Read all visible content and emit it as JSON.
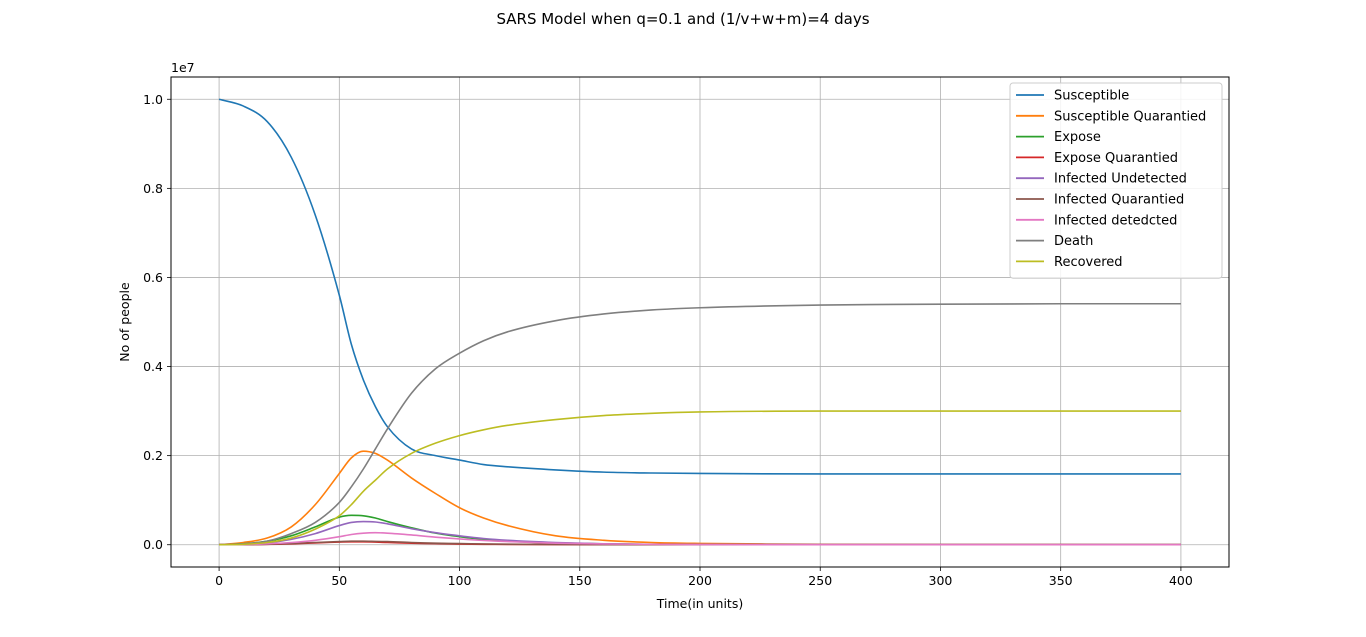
{
  "chart_data": {
    "type": "line",
    "title": "SARS Model when q=0.1 and (1/v+w+m)=4 days",
    "xlabel": "Time(in units)",
    "ylabel": "No of people",
    "y_offset_label": "1e7",
    "xlim": [
      -20,
      420
    ],
    "ylim": [
      -0.05,
      1.05
    ],
    "xticks": [
      0,
      50,
      100,
      150,
      200,
      250,
      300,
      350,
      400
    ],
    "xtick_labels": [
      "0",
      "50",
      "100",
      "150",
      "200",
      "250",
      "300",
      "350",
      "400"
    ],
    "yticks": [
      0.0,
      0.2,
      0.4,
      0.6,
      0.8,
      1.0
    ],
    "ytick_labels": [
      "0.0",
      "0.2",
      "0.4",
      "0.6",
      "0.8",
      "1.0"
    ],
    "grid": true,
    "legend_position": "top-right",
    "x": [
      0,
      10,
      20,
      30,
      40,
      50,
      55,
      60,
      65,
      70,
      80,
      90,
      100,
      110,
      120,
      140,
      160,
      180,
      200,
      250,
      300,
      350,
      400
    ],
    "series": [
      {
        "name": "Susceptible",
        "color": "#1f77b4",
        "values": [
          1.0,
          0.985,
          0.95,
          0.87,
          0.74,
          0.56,
          0.45,
          0.37,
          0.31,
          0.265,
          0.215,
          0.2,
          0.19,
          0.18,
          0.175,
          0.168,
          0.163,
          0.161,
          0.16,
          0.159,
          0.159,
          0.159,
          0.159
        ]
      },
      {
        "name": "Susceptible Quarantied",
        "color": "#ff7f0e",
        "values": [
          0.0,
          0.005,
          0.015,
          0.04,
          0.09,
          0.16,
          0.195,
          0.21,
          0.205,
          0.19,
          0.15,
          0.115,
          0.083,
          0.06,
          0.043,
          0.02,
          0.01,
          0.005,
          0.003,
          0.001,
          0.0005,
          0.0003,
          0.0002
        ]
      },
      {
        "name": "Expose",
        "color": "#2ca02c",
        "values": [
          0.0,
          0.002,
          0.008,
          0.02,
          0.04,
          0.062,
          0.066,
          0.065,
          0.06,
          0.052,
          0.038,
          0.026,
          0.018,
          0.012,
          0.008,
          0.004,
          0.002,
          0.001,
          0.0005,
          0.0002,
          0.0001,
          0.0001,
          0.0001
        ]
      },
      {
        "name": "Expose Quarantied",
        "color": "#d62728",
        "values": [
          0.0,
          0.0002,
          0.0008,
          0.002,
          0.004,
          0.006,
          0.0065,
          0.0065,
          0.006,
          0.005,
          0.0035,
          0.0025,
          0.0015,
          0.001,
          0.0007,
          0.0003,
          0.0001,
          0.0001,
          0.0,
          0.0,
          0.0,
          0.0,
          0.0
        ]
      },
      {
        "name": "Infected Undetected",
        "color": "#9467bd",
        "values": [
          0.0,
          0.001,
          0.004,
          0.012,
          0.025,
          0.043,
          0.05,
          0.052,
          0.051,
          0.047,
          0.036,
          0.027,
          0.02,
          0.014,
          0.01,
          0.005,
          0.002,
          0.001,
          0.0006,
          0.0002,
          0.0001,
          0.0001,
          0.0001
        ]
      },
      {
        "name": "Infected Quarantied",
        "color": "#8c564b",
        "values": [
          0.0,
          0.0003,
          0.001,
          0.003,
          0.005,
          0.007,
          0.008,
          0.008,
          0.0075,
          0.007,
          0.005,
          0.0035,
          0.0025,
          0.0017,
          0.0012,
          0.0005,
          0.0002,
          0.0001,
          0.0,
          0.0,
          0.0,
          0.0,
          0.0
        ]
      },
      {
        "name": "Infected detedcted",
        "color": "#e377c2",
        "values": [
          0.0,
          0.0005,
          0.002,
          0.005,
          0.01,
          0.018,
          0.023,
          0.026,
          0.027,
          0.026,
          0.022,
          0.017,
          0.013,
          0.0095,
          0.007,
          0.0035,
          0.0017,
          0.0008,
          0.0004,
          0.0001,
          0.0,
          0.0,
          0.0
        ]
      },
      {
        "name": "Death",
        "color": "#7f7f7f",
        "values": [
          0.0,
          0.002,
          0.008,
          0.025,
          0.05,
          0.095,
          0.13,
          0.17,
          0.215,
          0.26,
          0.34,
          0.395,
          0.43,
          0.458,
          0.478,
          0.503,
          0.518,
          0.527,
          0.532,
          0.538,
          0.54,
          0.541,
          0.541
        ]
      },
      {
        "name": "Recovered",
        "color": "#bcbd22",
        "values": [
          0.0,
          0.001,
          0.005,
          0.015,
          0.035,
          0.065,
          0.09,
          0.12,
          0.145,
          0.17,
          0.205,
          0.228,
          0.245,
          0.258,
          0.268,
          0.281,
          0.29,
          0.295,
          0.298,
          0.3,
          0.3,
          0.3,
          0.3
        ]
      }
    ]
  }
}
